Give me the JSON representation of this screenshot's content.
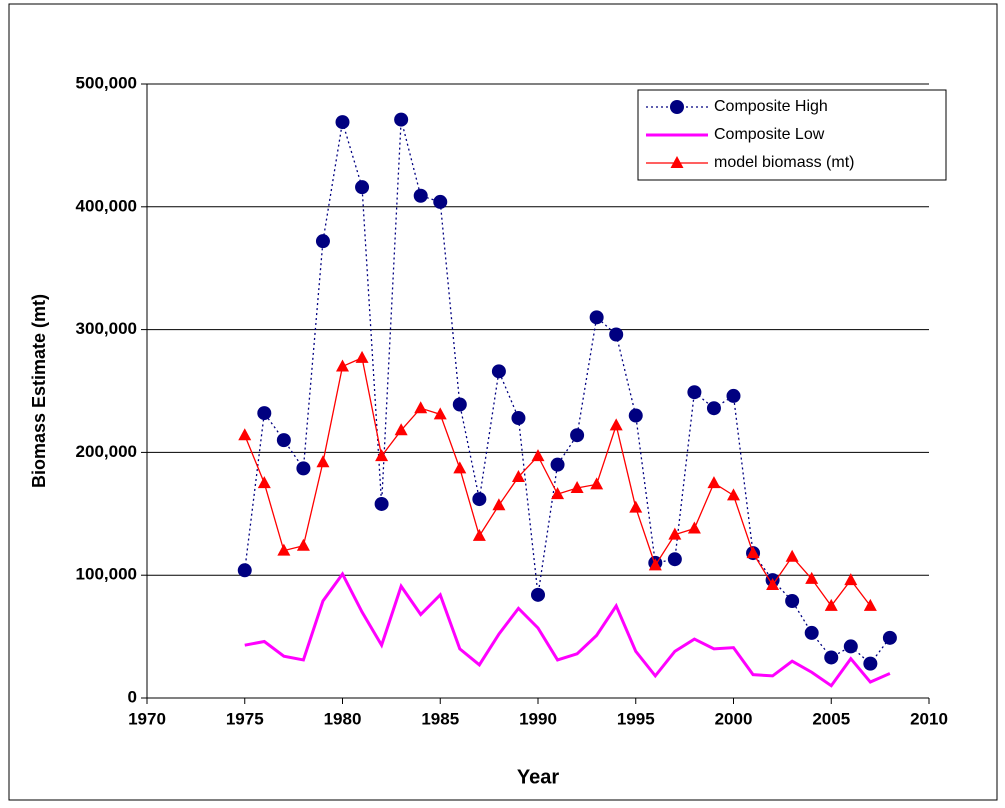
{
  "chart_data": {
    "type": "line",
    "x_label": "Year",
    "y_label": "Biomass Estimate (mt)",
    "xlim": [
      1970,
      2010
    ],
    "xticks": [
      1970,
      1975,
      1980,
      1985,
      1990,
      1995,
      2000,
      2005,
      2010
    ],
    "ylim": [
      0,
      500000
    ],
    "yticks": [
      0,
      {
        "value": 100000,
        "label": "100,000"
      },
      {
        "value": 200000,
        "label": "200,000"
      },
      {
        "value": 300000,
        "label": "300,000"
      },
      {
        "value": 400000,
        "label": "400,000"
      },
      {
        "value": 500000,
        "label": "500,000"
      }
    ],
    "grid": true,
    "legend": "top-right",
    "series": [
      {
        "name": "Composite High",
        "color": "#000080",
        "marker": "circle",
        "dash": "dotted",
        "x": [
          1975,
          1976,
          1977,
          1978,
          1979,
          1980,
          1981,
          1982,
          1983,
          1984,
          1985,
          1986,
          1987,
          1988,
          1989,
          1990,
          1991,
          1992,
          1993,
          1994,
          1995,
          1996,
          1997,
          1998,
          1999,
          2000,
          2001,
          2002,
          2003,
          2004,
          2005,
          2006,
          2007,
          2008
        ],
        "values": [
          104000,
          232000,
          210000,
          187000,
          372000,
          469000,
          416000,
          158000,
          471000,
          409000,
          404000,
          239000,
          162000,
          266000,
          228000,
          84000,
          190000,
          214000,
          310000,
          296000,
          230000,
          110000,
          113000,
          249000,
          236000,
          246000,
          118000,
          96000,
          79000,
          53000,
          33000,
          42000,
          28000,
          49000
        ]
      },
      {
        "name": "Composite Low",
        "color": "#ff00ff",
        "marker": "none",
        "dash": "solid",
        "x": [
          1975,
          1976,
          1977,
          1978,
          1979,
          1980,
          1981,
          1982,
          1983,
          1984,
          1985,
          1986,
          1987,
          1988,
          1989,
          1990,
          1991,
          1992,
          1993,
          1994,
          1995,
          1996,
          1997,
          1998,
          1999,
          2000,
          2001,
          2002,
          2003,
          2004,
          2005,
          2006,
          2007,
          2008
        ],
        "values": [
          43000,
          46000,
          34000,
          31000,
          79000,
          101000,
          70000,
          43000,
          91000,
          68000,
          84000,
          40000,
          27000,
          52000,
          73000,
          57000,
          31000,
          36000,
          51000,
          75000,
          38000,
          18000,
          38000,
          48000,
          40000,
          41000,
          19000,
          18000,
          30000,
          21000,
          10000,
          32000,
          13000,
          20000
        ]
      },
      {
        "name": "model biomass (mt)",
        "color": "#ff0000",
        "marker": "triangle",
        "dash": "solid",
        "x": [
          1975,
          1976,
          1977,
          1978,
          1979,
          1980,
          1981,
          1982,
          1983,
          1984,
          1985,
          1986,
          1987,
          1988,
          1989,
          1990,
          1991,
          1992,
          1993,
          1994,
          1995,
          1996,
          1997,
          1998,
          1999,
          2000,
          2001,
          2002,
          2003,
          2004,
          2005,
          2006,
          2007
        ],
        "values": [
          214000,
          175000,
          120000,
          124000,
          192000,
          270000,
          277000,
          197000,
          218000,
          236000,
          231000,
          187000,
          132000,
          157000,
          180000,
          197000,
          166000,
          171000,
          174000,
          222000,
          155000,
          108000,
          133000,
          138000,
          175000,
          165000,
          118000,
          92000,
          115000,
          97000,
          75000,
          96000,
          75000
        ]
      }
    ]
  }
}
